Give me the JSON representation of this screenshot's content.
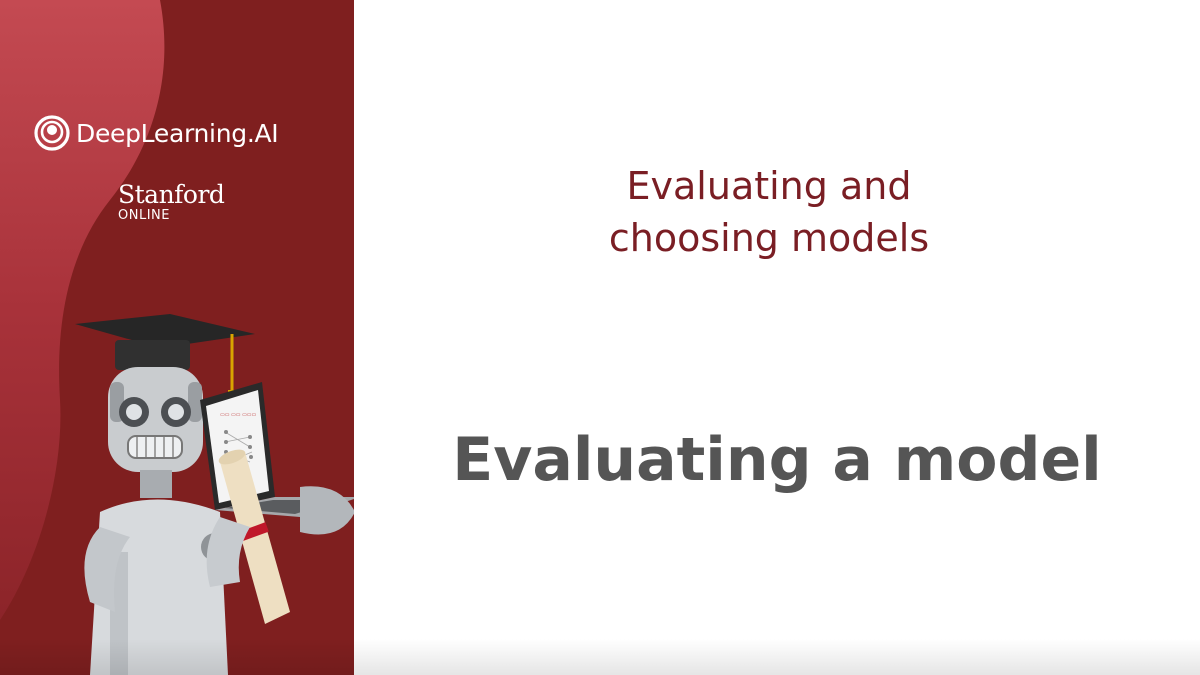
{
  "sidebar": {
    "brand": "DeepLearning.AI",
    "brand_icon": "deeplearning-ai-logo-icon",
    "university": "Stanford",
    "university_sub": "ONLINE",
    "illustration": "graduate-robot-with-laptop-and-diploma",
    "colors": {
      "background": "#7f1f1f",
      "wave_highlight": "#c0424a"
    }
  },
  "main": {
    "section_title": "Evaluating and\nchoosing models",
    "slide_title": "Evaluating a model",
    "colors": {
      "section_title": "#7a1e24",
      "slide_title": "#555555"
    }
  }
}
